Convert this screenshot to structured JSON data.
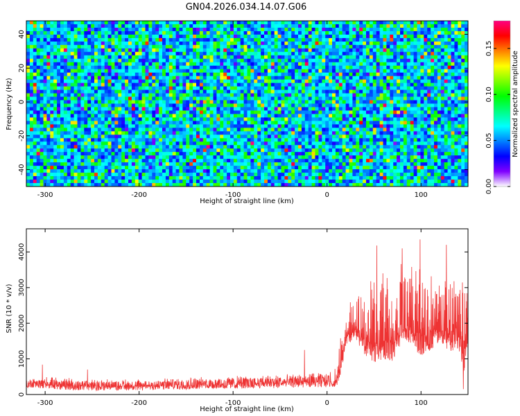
{
  "title": "GN04.2026.034.14.07.G06",
  "chart_data": [
    {
      "type": "heatmap",
      "xlabel": "Height of straight line (km)",
      "ylabel": "Frequency (Hz)",
      "xlim": [
        -320,
        150
      ],
      "ylim": [
        -50,
        48
      ],
      "x_ticks": [
        "-300",
        "-200",
        "-100",
        "0",
        "100"
      ],
      "y_ticks": [
        "-40",
        "-20",
        "0",
        "20",
        "40"
      ],
      "colorbar": {
        "label": "Normalized spectral amplitude",
        "range": [
          0,
          0.18
        ],
        "ticks": [
          "0.00",
          "0.05",
          "0.10",
          "0.15"
        ],
        "colors": [
          "#ffffff",
          "#8000ff",
          "#0000ff",
          "#0080ff",
          "#00ffff",
          "#00ff80",
          "#00ff00",
          "#80ff00",
          "#ffff00",
          "#ff8000",
          "#ff0000",
          "#ff0080"
        ]
      },
      "field": {
        "description_values": "random-like normalized spectral amplitude, mostly 0.03-0.07 (blue), scattered cells 0.08-0.13 (cyan/green), rare peaks 0.15-0.18 (yellow/red)",
        "typical_value": 0.04,
        "max_value": 0.18
      }
    },
    {
      "type": "line",
      "xlabel": "Height of straight line (km)",
      "ylabel": "SNR (10 * v/v)",
      "xlim": [
        -320,
        150
      ],
      "ylim": [
        0,
        4650
      ],
      "x_ticks": [
        "-300",
        "-200",
        "-100",
        "0",
        "100"
      ],
      "y_ticks": [
        "0",
        "1000",
        "2000",
        "3000",
        "4000"
      ],
      "color": "#ee3333",
      "envelope": {
        "x": [
          -320,
          -300,
          -280,
          -250,
          -200,
          -150,
          -100,
          -50,
          -20,
          0,
          10,
          15,
          20,
          30,
          40,
          50,
          60,
          70,
          80,
          90,
          100,
          110,
          120,
          130,
          140,
          145,
          150
        ],
        "low": [
          200,
          160,
          120,
          100,
          120,
          140,
          160,
          180,
          200,
          200,
          220,
          600,
          1400,
          1500,
          1100,
          900,
          1000,
          900,
          1500,
          1300,
          1100,
          1200,
          1500,
          1200,
          1300,
          500,
          1400
        ],
        "high": [
          420,
          500,
          480,
          440,
          420,
          480,
          520,
          560,
          600,
          600,
          800,
          1700,
          2400,
          2900,
          3000,
          3300,
          3600,
          3300,
          3800,
          3700,
          3600,
          3500,
          3700,
          3800,
          3700,
          3200,
          3500
        ]
      },
      "spikes": [
        {
          "x": -303,
          "y": 840
        },
        {
          "x": -255,
          "y": 700
        },
        {
          "x": -24,
          "y": 1250
        },
        {
          "x": 53,
          "y": 4180
        },
        {
          "x": 80,
          "y": 4100
        },
        {
          "x": 99,
          "y": 4350
        },
        {
          "x": 127,
          "y": 4200
        },
        {
          "x": 145,
          "y": 150
        }
      ]
    }
  ]
}
